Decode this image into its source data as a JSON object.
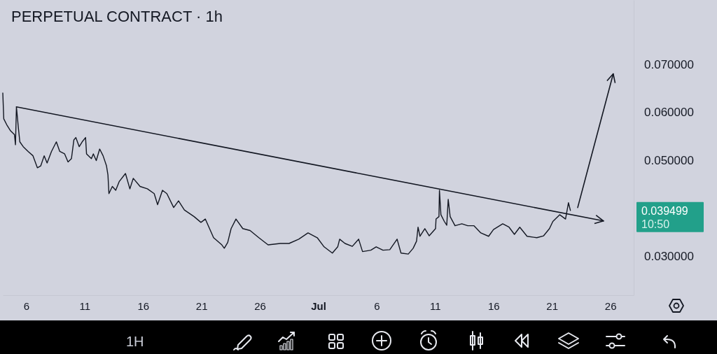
{
  "chart_data": {
    "type": "line",
    "title": "PERPETUAL CONTRACT · 1h",
    "x": [
      "--06-04T00:00",
      "--06-04T02:00",
      "--06-04T09:00",
      "--06-04T16:00",
      "--06-05T00:00",
      "--06-05T02:00",
      "--06-05T04:00",
      "--06-05T08:00",
      "--06-05T11:00",
      "--06-05T18:00",
      "--06-06T04:00",
      "--06-06T14:00",
      "--06-06T23:00",
      "--06-07T06:00",
      "--06-07T13:00",
      "--06-07T19:00",
      "--06-08T04:00",
      "--06-08T14:00",
      "--06-08T21:00",
      "--06-09T07:00",
      "--06-09T14:00",
      "--06-09T21:00",
      "--06-10T02:00",
      "--06-10T06:00",
      "--06-10T13:00",
      "--06-10T19:00",
      "--06-11T02:00",
      "--06-11T04:00",
      "--06-11T14:00",
      "--06-11T18:00",
      "--06-12T00:00",
      "--06-12T07:00",
      "--06-12T14:00",
      "--06-12T21:00",
      "--06-13T00:00",
      "--06-13T02:00",
      "--06-13T09:00",
      "--06-13T16:00",
      "--06-13T23:00",
      "--06-14T12:00",
      "--06-14T21:00",
      "--06-15T04:00",
      "--06-15T18:00",
      "--06-16T09:00",
      "--06-16T23:00",
      "--06-17T06:00",
      "--06-17T16:00",
      "--06-18T01:00",
      "--06-18T15:00",
      "--06-19T01:00",
      "--06-19T13:00",
      "--06-19T23:00",
      "--06-20T09:00",
      "--06-20T23:00",
      "--06-21T08:00",
      "--06-22T01:00",
      "--06-22T18:00",
      "--06-22T23:00",
      "--06-23T06:00",
      "--06-23T13:00",
      "--06-23T23:00",
      "--06-24T13:00",
      "--06-25T04:00",
      "--06-25T22:00",
      "--06-26T17:00",
      "--06-27T18:00",
      "--06-28T12:00",
      "--06-29T08:00",
      "--06-30T03:00",
      "--06-30T22:00",
      "--07-01T12:00",
      "--07-02T05:00",
      "--07-02T16:00",
      "--07-02T20:00",
      "--07-03T07:00",
      "--07-03T22:00",
      "--07-04T11:00",
      "--07-04T19:00",
      "--07-05T12:00",
      "--07-05T23:00",
      "--07-06T13:00",
      "--07-07T03:00",
      "--07-07T18:00",
      "--07-08T02:00",
      "--07-08T17:00",
      "--07-09T03:00",
      "--07-09T10:00",
      "--07-09T13:00",
      "--07-09T17:00",
      "--07-10T03:00",
      "--07-10T12:00",
      "--07-11T01:00",
      "--07-11T02:00",
      "--07-11T08:00",
      "--07-11T09:00",
      "--07-11T12:00",
      "--07-11T19:00",
      "--07-12T00:00",
      "--07-12T03:00",
      "--07-12T07:00",
      "--07-12T17:00",
      "--07-13T07:00",
      "--07-13T19:00",
      "--07-14T08:00",
      "--07-14T22:00",
      "--07-15T14:00",
      "--07-16T00:00",
      "--07-16T19:00",
      "--07-17T08:00",
      "--07-17T19:00",
      "--07-18T06:00",
      "--07-18T21:00",
      "--07-19T17:00",
      "--07-20T07:00",
      "--07-20T19:00",
      "--07-21T02:00",
      "--07-21T16:00",
      "--07-22T04:00",
      "--07-22T10:00",
      "--07-22T14:00"
    ],
    "series": [
      {
        "color": "#131722",
        "values": [
          0.064,
          0.0586,
          0.0572,
          0.0561,
          0.0553,
          0.0532,
          0.0611,
          0.0567,
          0.0538,
          0.0528,
          0.0518,
          0.0509,
          0.0484,
          0.0488,
          0.0509,
          0.0494,
          0.0518,
          0.0538,
          0.0518,
          0.0513,
          0.0496,
          0.0503,
          0.0542,
          0.0547,
          0.0528,
          0.0538,
          0.0547,
          0.0513,
          0.0503,
          0.0513,
          0.0499,
          0.0523,
          0.0509,
          0.0488,
          0.0469,
          0.043,
          0.0445,
          0.0437,
          0.0455,
          0.0472,
          0.044,
          0.0462,
          0.0445,
          0.044,
          0.043,
          0.0407,
          0.0437,
          0.043,
          0.0401,
          0.0415,
          0.0396,
          0.0389,
          0.0382,
          0.037,
          0.0377,
          0.0338,
          0.0323,
          0.0316,
          0.0328,
          0.0357,
          0.0377,
          0.0357,
          0.0353,
          0.0338,
          0.0323,
          0.0326,
          0.0326,
          0.0335,
          0.0348,
          0.0338,
          0.0319,
          0.0306,
          0.0319,
          0.0335,
          0.0326,
          0.032,
          0.0335,
          0.0309,
          0.0312,
          0.0319,
          0.0312,
          0.0313,
          0.0335,
          0.0306,
          0.0304,
          0.0316,
          0.0331,
          0.036,
          0.0341,
          0.0357,
          0.0342,
          0.0357,
          0.0377,
          0.0382,
          0.0437,
          0.0386,
          0.0372,
          0.0364,
          0.0418,
          0.0382,
          0.0363,
          0.0367,
          0.0363,
          0.0363,
          0.0348,
          0.0341,
          0.0355,
          0.0367,
          0.036,
          0.0345,
          0.036,
          0.0341,
          0.0338,
          0.0342,
          0.0357,
          0.0372,
          0.0386,
          0.0377,
          0.0411,
          0.0395
        ]
      },
      {
        "type": "line",
        "color": "#131722",
        "x": [
          "--06-05T04:00",
          "--07-25T10:00"
        ],
        "values": [
          0.0611,
          0.0373
        ]
      },
      {
        "type": "line",
        "color": "#131722",
        "x": [
          "--07-23T05:00",
          "--07-26T06:00"
        ],
        "values": [
          0.0401,
          0.068
        ]
      }
    ],
    "xlim": [
      "--06-04",
      "--07-28"
    ],
    "xticks": [
      {
        "value": "--06-06",
        "label": "6"
      },
      {
        "value": "--06-11",
        "label": "11"
      },
      {
        "value": "--06-16",
        "label": "16"
      },
      {
        "value": "--06-21",
        "label": "21"
      },
      {
        "value": "--06-26",
        "label": "26"
      },
      {
        "value": "--07-01",
        "label": "Jul"
      },
      {
        "value": "--07-06",
        "label": "6"
      },
      {
        "value": "--07-11",
        "label": "11"
      },
      {
        "value": "--07-16",
        "label": "16"
      },
      {
        "value": "--07-21",
        "label": "21"
      },
      {
        "value": "--07-26",
        "label": "26"
      }
    ],
    "ylim": [
      0.0218,
      0.0834
    ],
    "yticks": [
      {
        "value": 0.03,
        "label": "0.030000"
      },
      {
        "value": 0.05,
        "label": "0.050000"
      },
      {
        "value": 0.06,
        "label": "0.060000"
      },
      {
        "value": 0.07,
        "label": "0.070000"
      }
    ],
    "annotations": [
      "0.039499",
      "10:50",
      "1H"
    ]
  }
}
